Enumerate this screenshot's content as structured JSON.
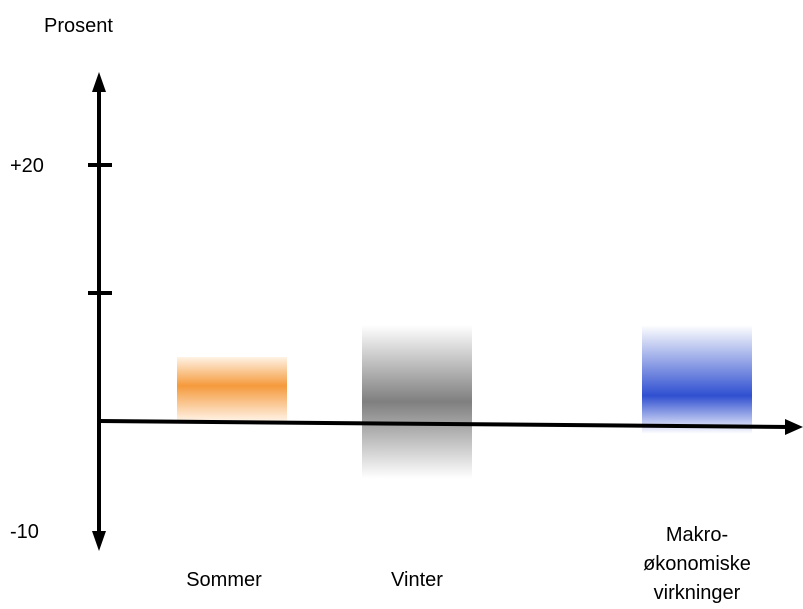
{
  "chart_data": {
    "type": "bar",
    "ylabel": "Prosent",
    "yticks": [
      {
        "value": 20,
        "label": "+20"
      },
      {
        "value": 10,
        "label": ""
      },
      {
        "value": -10,
        "label": "-10"
      }
    ],
    "ylim": [
      -10,
      20
    ],
    "categories": [
      {
        "lines": [
          "Sommer"
        ]
      },
      {
        "lines": [
          "Vinter"
        ]
      },
      {
        "lines": [
          "Makro-",
          "økonomiske",
          "virkninger"
        ]
      }
    ],
    "series": [
      {
        "ranges": [
          [
            0,
            5
          ],
          [
            -4.5,
            7.5
          ],
          [
            -1,
            7.5
          ]
        ],
        "colors": [
          "#f59a3c",
          "#7f7f7f",
          "#2f4fd0"
        ]
      }
    ]
  }
}
